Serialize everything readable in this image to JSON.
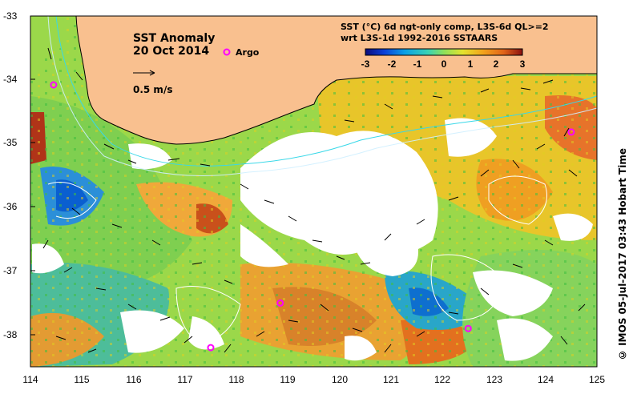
{
  "map": {
    "title": "SST Anomaly",
    "date": "20 Oct 2014",
    "argo_label": "Argo",
    "vector_scale_label": "0.5 m/s",
    "product_line1": "SST (°C) 6d ngt-only comp, L3S-6d QL>=2",
    "product_line2": "wrt L3S-1d 1992-2016 SSTAARS",
    "colorbar_ticks": [
      "-3",
      "-2",
      "-1",
      "0",
      "1",
      "2",
      "3"
    ],
    "lat_labels": [
      "-33",
      "-34",
      "-35",
      "-36",
      "-37",
      "-38"
    ],
    "lon_labels": [
      "114",
      "115",
      "116",
      "117",
      "118",
      "119",
      "120",
      "121",
      "122",
      "123",
      "124",
      "125"
    ],
    "credit": "© IMOS 05-Jul-2017 03:43 Hobart Time",
    "colors": {
      "land": "#f9c08f",
      "argo": "#ff00ff",
      "no_data": "#ffffff"
    },
    "argo_floats": [
      {
        "lon": 114.45,
        "lat": -34.08
      },
      {
        "lon": 124.5,
        "lat": -34.82
      },
      {
        "lon": 118.85,
        "lat": -37.5
      },
      {
        "lon": 122.5,
        "lat": -37.9
      },
      {
        "lon": 117.5,
        "lat": -38.2
      }
    ]
  }
}
